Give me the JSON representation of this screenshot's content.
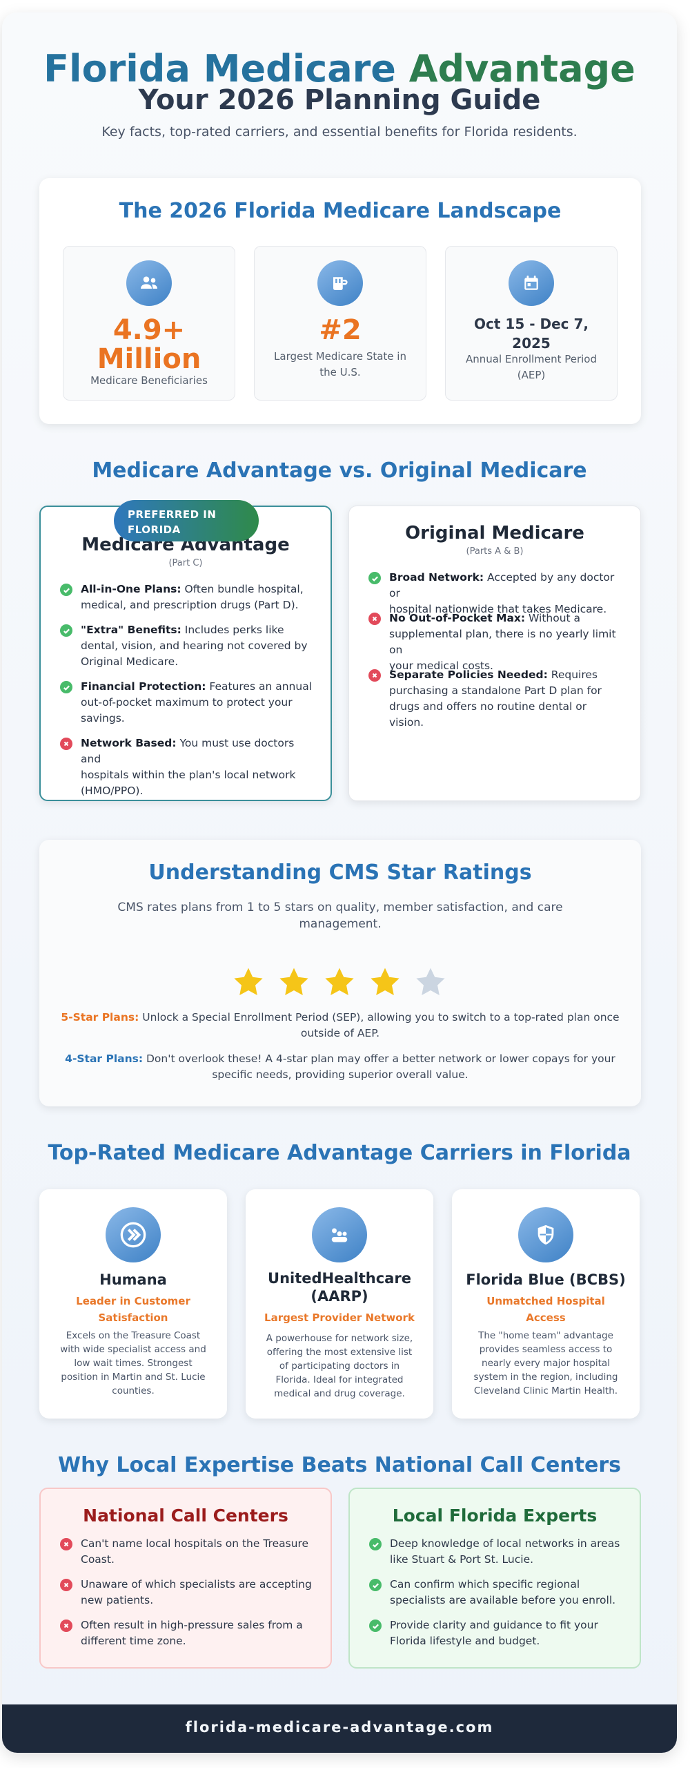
{
  "header": {
    "title_part1": "Florida Medicare",
    "title_part2": "Advantage",
    "subtitle": "Your 2026 Planning Guide",
    "intro": "Key facts, top-rated carriers, and essential benefits for Florida residents."
  },
  "landscape": {
    "heading": "The 2026 Florida Medicare Landscape",
    "stats": [
      {
        "icon": "people-icon",
        "value_line1": "4.9+",
        "value_line2": "Million",
        "label": "Medicare Beneficiaries"
      },
      {
        "icon": "building-icon",
        "value": "#2",
        "label_line1": "Largest Medicare State in",
        "label_line2": "the U.S."
      },
      {
        "icon": "calendar-icon",
        "value_line1": "Oct 15 - Dec 7,",
        "value_line2": "2025",
        "label_line1": "Annual Enrollment Period",
        "label_line2": "(AEP)"
      }
    ]
  },
  "comparison": {
    "heading": "Medicare Advantage vs. Original Medicare",
    "badge_line1": "PREFERRED IN",
    "badge_line2": "FLORIDA",
    "advantage": {
      "title": "Medicare Advantage",
      "subtitle": "(Part C)",
      "items": [
        {
          "status": "check",
          "bold": "All-in-One Plans:",
          "line1_rest": " Often bundle hospital,",
          "line2": "medical, and prescription drugs (Part D)."
        },
        {
          "status": "check",
          "bold": "\"Extra\" Benefits:",
          "line1_rest": " Includes perks like",
          "line2": "dental, vision, and hearing not covered by",
          "line3": "Original Medicare."
        },
        {
          "status": "check",
          "bold": "Financial Protection:",
          "line1_rest": " Features an annual",
          "line2": "out-of-pocket maximum to protect your",
          "line3": "savings."
        },
        {
          "status": "cross",
          "bold": "Network Based:",
          "line1_rest": " You must use doctors and",
          "line2": "hospitals within the plan's local network",
          "line3": "(HMO/PPO)."
        }
      ]
    },
    "original": {
      "title": "Original Medicare",
      "subtitle": "(Parts A & B)",
      "items": [
        {
          "status": "check",
          "bold": "Broad Network:",
          "line1_rest": " Accepted by any doctor or",
          "line2": "hospital nationwide that takes Medicare."
        },
        {
          "status": "cross",
          "bold": "No Out-of-Pocket Max:",
          "line1_rest": " Without a",
          "line2": "supplemental plan, there is no yearly limit on",
          "line3": "your medical costs."
        },
        {
          "status": "cross",
          "bold": "Separate Policies Needed:",
          "line1_rest": " Requires",
          "line2": "purchasing a standalone Part D plan for",
          "line3": "drugs and offers no routine dental or vision."
        }
      ]
    }
  },
  "ratings": {
    "heading": "Understanding CMS Star Ratings",
    "desc_line1": "CMS rates plans from 1 to 5 stars on quality, member satisfaction, and care",
    "desc_line2": "management.",
    "stars_filled": 4,
    "stars_total": 5,
    "five_label": "5-Star Plans:",
    "five_line1": " Unlock a Special Enrollment Period (SEP), allowing you to switch to a top-rated plan once",
    "five_line2": "outside of AEP.",
    "four_label": "4-Star Plans:",
    "four_line1": " Don't overlook these! A 4-star plan may offer a better network or lower copays for your",
    "four_line2": "specific needs, providing superior overall value."
  },
  "carriers": {
    "heading": "Top-Rated Medicare Advantage Carriers in Florida",
    "items": [
      {
        "icon": "humana-logo-icon",
        "name_line1": "Humana",
        "tag_line1": "Leader in Customer",
        "tag_line2": "Satisfaction",
        "desc": [
          "Excels on the Treasure Coast",
          "with wide specialist access and",
          "low wait times. Strongest",
          "position in Martin and St. Lucie",
          "counties."
        ]
      },
      {
        "icon": "uhc-logo-icon",
        "name_line1": "UnitedHealthcare",
        "name_line2": "(AARP)",
        "tag_line1": "Largest Provider Network",
        "desc": [
          "A powerhouse for network size,",
          "offering the most extensive list",
          "of participating doctors in",
          "Florida. Ideal for integrated",
          "medical and drug coverage."
        ]
      },
      {
        "icon": "shield-icon",
        "name_line1": "Florida Blue (BCBS)",
        "tag_line1": "Unmatched Hospital",
        "tag_line2": "Access",
        "desc": [
          "The \"home team\" advantage",
          "provides seamless access to",
          "nearly every major hospital",
          "system in the region, including",
          "Cleveland Clinic Martin Health."
        ]
      }
    ]
  },
  "local": {
    "heading": "Why Local Expertise Beats National Call Centers",
    "national": {
      "title": "National Call Centers",
      "items": [
        {
          "line1": "Can't name local hospitals on the Treasure",
          "line2": "Coast."
        },
        {
          "line1": "Unaware of which specialists are accepting",
          "line2": "new patients."
        },
        {
          "line1": "Often result in high-pressure sales from a",
          "line2": "different time zone."
        }
      ]
    },
    "experts": {
      "title": "Local Florida Experts",
      "items": [
        {
          "line1": "Deep knowledge of local networks in areas",
          "line2": "like Stuart & Port St. Lucie."
        },
        {
          "line1": "Can confirm which specific regional",
          "line2": "specialists are available before you enroll."
        },
        {
          "line1": "Provide clarity and guidance to fit your",
          "line2": "Florida lifestyle and budget."
        }
      ]
    }
  },
  "footer": {
    "url": "florida-medicare-advantage.com"
  },
  "colors": {
    "blue": "#2a73b5",
    "green": "#2e7d4f",
    "orange": "#ea7422",
    "star": "#f5c518",
    "star_empty": "#cbd5e1"
  }
}
